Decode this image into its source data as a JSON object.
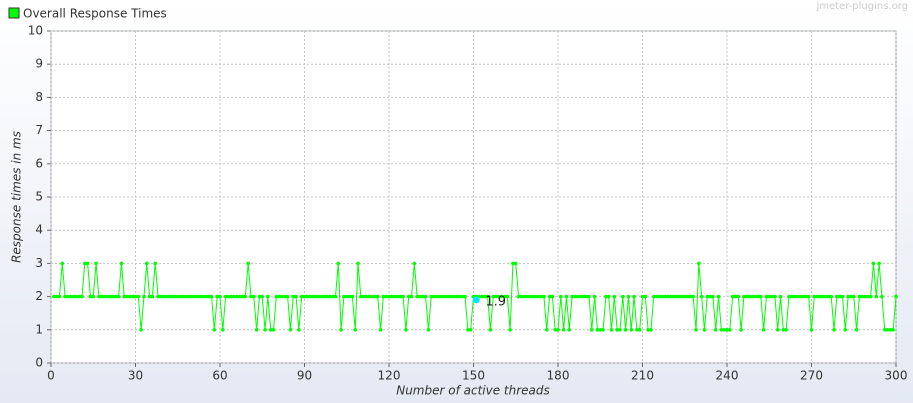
{
  "chart_data": {
    "type": "line",
    "title": "Overall Response Times",
    "watermark": "jmeter-plugins.org",
    "x_label": "Number of active threads",
    "y_label": "Response times in ms",
    "xlim": [
      0,
      300
    ],
    "xticks": [
      0,
      30,
      60,
      90,
      120,
      150,
      180,
      210,
      240,
      270,
      300
    ],
    "ylim": [
      0,
      10
    ],
    "yticks": [
      0,
      1,
      2,
      3,
      4,
      5,
      6,
      7,
      8,
      9,
      10
    ],
    "grid": true,
    "x": [
      1,
      2,
      3,
      4,
      5,
      6,
      7,
      8,
      9,
      10,
      11,
      12,
      13,
      14,
      15,
      16,
      17,
      18,
      19,
      20,
      21,
      22,
      23,
      24,
      25,
      26,
      27,
      28,
      29,
      30,
      31,
      32,
      33,
      34,
      35,
      36,
      37,
      38,
      39,
      40,
      41,
      42,
      43,
      44,
      45,
      46,
      47,
      48,
      49,
      50,
      51,
      52,
      53,
      54,
      55,
      56,
      57,
      58,
      59,
      60,
      61,
      62,
      63,
      64,
      65,
      66,
      67,
      68,
      69,
      70,
      71,
      72,
      73,
      74,
      75,
      76,
      77,
      78,
      79,
      80,
      81,
      82,
      83,
      84,
      85,
      86,
      87,
      88,
      89,
      90,
      91,
      92,
      93,
      94,
      95,
      96,
      97,
      98,
      99,
      100,
      101,
      102,
      103,
      104,
      105,
      106,
      107,
      108,
      109,
      110,
      111,
      112,
      113,
      114,
      115,
      116,
      117,
      118,
      119,
      120,
      121,
      122,
      123,
      124,
      125,
      126,
      127,
      128,
      129,
      130,
      131,
      132,
      133,
      134,
      135,
      136,
      137,
      138,
      139,
      140,
      141,
      142,
      143,
      144,
      145,
      146,
      147,
      148,
      149,
      150,
      151,
      152,
      153,
      154,
      155,
      156,
      157,
      158,
      159,
      160,
      161,
      162,
      163,
      164,
      165,
      166,
      167,
      168,
      169,
      170,
      171,
      172,
      173,
      174,
      175,
      176,
      177,
      178,
      179,
      180,
      181,
      182,
      183,
      184,
      185,
      186,
      187,
      188,
      189,
      190,
      191,
      192,
      193,
      194,
      195,
      196,
      197,
      198,
      199,
      200,
      201,
      202,
      203,
      204,
      205,
      206,
      207,
      208,
      209,
      210,
      211,
      212,
      213,
      214,
      215,
      216,
      217,
      218,
      219,
      220,
      221,
      222,
      223,
      224,
      225,
      226,
      227,
      228,
      229,
      230,
      231,
      232,
      233,
      234,
      235,
      236,
      237,
      238,
      239,
      240,
      241,
      242,
      243,
      244,
      245,
      246,
      247,
      248,
      249,
      250,
      251,
      252,
      253,
      254,
      255,
      256,
      257,
      258,
      259,
      260,
      261,
      262,
      263,
      264,
      265,
      266,
      267,
      268,
      269,
      270,
      271,
      272,
      273,
      274,
      275,
      276,
      277,
      278,
      279,
      280,
      281,
      282,
      283,
      284,
      285,
      286,
      287,
      288,
      289,
      290,
      291,
      292,
      293,
      294,
      295,
      296,
      297,
      298,
      299,
      300
    ],
    "series": [
      {
        "name": "Overall Response Times",
        "color": "#00ff00",
        "values": [
          2,
          2,
          2,
          3,
          2,
          2,
          2,
          2,
          2,
          2,
          2,
          3,
          3,
          2,
          2,
          3,
          2,
          2,
          2,
          2,
          2,
          2,
          2,
          2,
          3,
          2,
          2,
          2,
          2,
          2,
          2,
          1,
          2,
          3,
          2,
          2,
          3,
          2,
          2,
          2,
          2,
          2,
          2,
          2,
          2,
          2,
          2,
          2,
          2,
          2,
          2,
          2,
          2,
          2,
          2,
          2,
          2,
          1,
          2,
          2,
          1,
          2,
          2,
          2,
          2,
          2,
          2,
          2,
          2,
          3,
          2,
          2,
          1,
          2,
          2,
          1,
          2,
          1,
          1,
          2,
          2,
          2,
          2,
          2,
          1,
          2,
          2,
          1,
          2,
          2,
          2,
          2,
          2,
          2,
          2,
          2,
          2,
          2,
          2,
          2,
          2,
          3,
          1,
          2,
          2,
          2,
          2,
          1,
          3,
          2,
          2,
          2,
          2,
          2,
          2,
          2,
          1,
          2,
          2,
          2,
          2,
          2,
          2,
          2,
          2,
          1,
          2,
          2,
          3,
          2,
          2,
          2,
          2,
          1,
          2,
          2,
          2,
          2,
          2,
          2,
          2,
          2,
          2,
          2,
          2,
          2,
          2,
          1,
          1,
          2,
          2,
          2,
          2,
          2,
          2,
          1,
          2,
          2,
          2,
          2,
          2,
          2,
          1,
          3,
          3,
          2,
          2,
          2,
          2,
          2,
          2,
          2,
          2,
          2,
          2,
          1,
          2,
          2,
          1,
          1,
          2,
          1,
          2,
          1,
          2,
          2,
          2,
          2,
          2,
          2,
          2,
          1,
          2,
          1,
          1,
          1,
          2,
          2,
          1,
          2,
          1,
          1,
          2,
          1,
          2,
          1,
          2,
          1,
          1,
          2,
          2,
          1,
          1,
          2,
          2,
          2,
          2,
          2,
          2,
          2,
          2,
          2,
          2,
          2,
          2,
          2,
          2,
          2,
          1,
          3,
          2,
          1,
          2,
          2,
          2,
          1,
          2,
          1,
          1,
          1,
          1,
          2,
          2,
          2,
          1,
          2,
          2,
          2,
          2,
          2,
          2,
          2,
          1,
          2,
          2,
          2,
          2,
          1,
          2,
          1,
          1,
          2,
          2,
          2,
          2,
          2,
          2,
          2,
          2,
          1,
          2,
          2,
          2,
          2,
          2,
          2,
          2,
          1,
          2,
          2,
          2,
          1,
          2,
          2,
          2,
          1,
          2,
          2,
          2,
          2,
          2,
          3,
          2,
          3,
          2,
          1,
          1,
          1,
          1,
          2
        ]
      }
    ],
    "hover_point": {
      "x": 151,
      "value": 1.9
    }
  }
}
